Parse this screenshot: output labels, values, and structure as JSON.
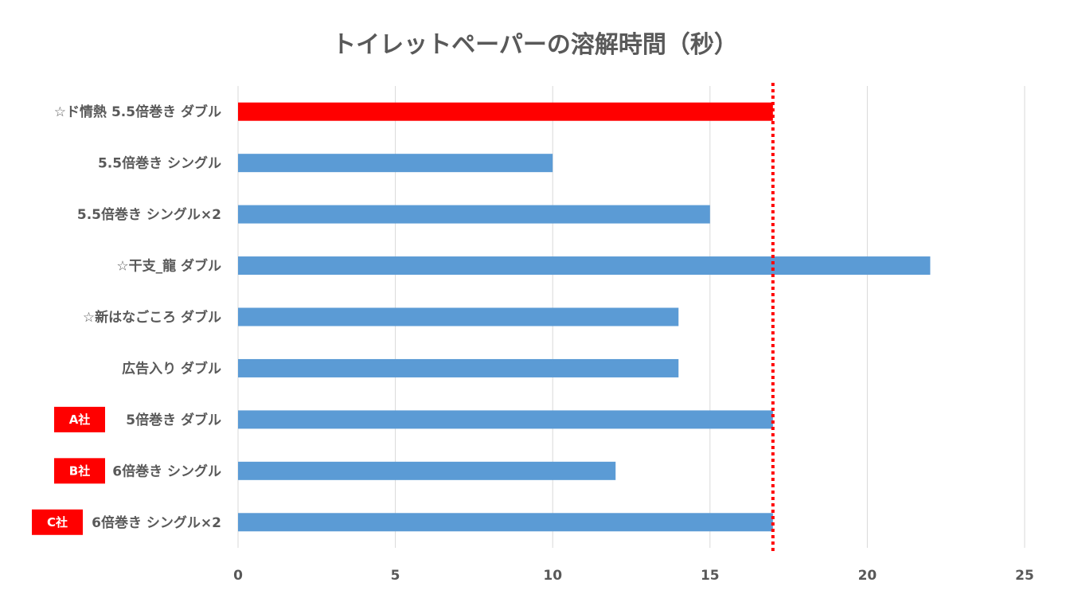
{
  "chart_data": {
    "type": "bar",
    "orientation": "horizontal",
    "title": "トイレットペーパーの溶解時間（秒）",
    "xlabel": "",
    "ylabel": "",
    "xlim": [
      0,
      25
    ],
    "x_ticks": [
      0,
      5,
      10,
      15,
      20,
      25
    ],
    "grid": true,
    "legend": "none",
    "categories": [
      "☆ド情熱 5.5倍巻き ダブル",
      "5.5倍巻き シングル",
      "5.5倍巻き シングル×2",
      "☆干支_龍 ダブル",
      "☆新はなごころ ダブル",
      "広告入り ダブル",
      "5倍巻き ダブル",
      "6倍巻き シングル",
      "6倍巻き シングル×2"
    ],
    "values": [
      17,
      10,
      15,
      22,
      14,
      14,
      17,
      12,
      17
    ],
    "bar_colors": [
      "#ff0000",
      "#5b9bd5",
      "#5b9bd5",
      "#5b9bd5",
      "#5b9bd5",
      "#5b9bd5",
      "#5b9bd5",
      "#5b9bd5",
      "#5b9bd5"
    ],
    "badges": [
      {
        "category_index": 6,
        "text": "A社"
      },
      {
        "category_index": 7,
        "text": "B社"
      },
      {
        "category_index": 8,
        "text": "C社"
      }
    ],
    "reference_line": {
      "value": 17,
      "style": "dotted",
      "color": "#ff0000"
    },
    "gridline_color": "#d9d9d9",
    "badge_color": "#ff0000"
  }
}
